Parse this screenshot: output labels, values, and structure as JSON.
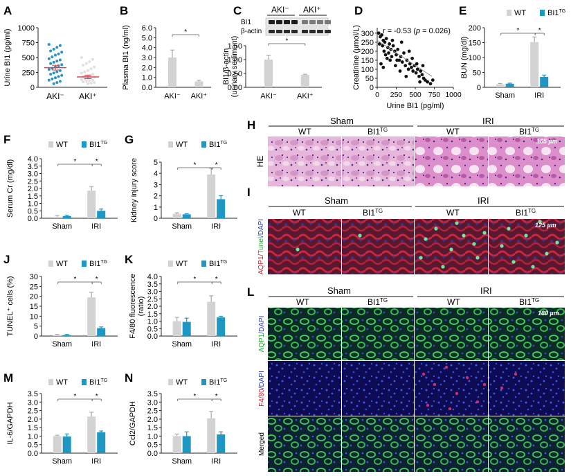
{
  "colors": {
    "wt": "#d3d3d3",
    "tg": "#2096c3",
    "red": "#d64550",
    "scatter_wt": "#2a93c4",
    "scatter_tg": "#e0e0e0",
    "he_bg": "#d9a3cc",
    "if_bg": "#521a2a",
    "if2_bg": "#0f3a28",
    "if3_bg": "#120d5c"
  },
  "legend": {
    "wt": "WT",
    "tg": "BI1",
    "tg_sup": "TG"
  },
  "sig": "*",
  "panels": {
    "A": {
      "letter": "A",
      "ylabel": "Urine BI1 (pg/ml)",
      "xlabels": [
        "AKI⁻",
        "AKI⁺"
      ]
    },
    "B": {
      "letter": "B",
      "ylabel": "Plasma BI1 (ng/ml)",
      "xlabels": [
        "AKI⁻",
        "AKI⁺"
      ]
    },
    "C": {
      "letter": "C",
      "ylabel": "BI1/β-actin",
      "ylabel2": "(urinary sediment)",
      "blot_labels": [
        "BI1",
        "β-actin"
      ],
      "groups": [
        "AKI⁻",
        "AKI⁺"
      ],
      "xlabels": [
        "AKI⁻",
        "AKI⁺"
      ]
    },
    "D": {
      "letter": "D",
      "ylabel": "Creatinine (µmol/L)",
      "xlabel": "Urine BI1 (pg/ml)",
      "r_text": "r = -0.53 (",
      "p_text": "p",
      "p_val": " = 0.026)"
    },
    "E": {
      "letter": "E",
      "ylabel": "BUN (mg/dl)",
      "xlabels": [
        "Sham",
        "IRI"
      ]
    },
    "F": {
      "letter": "F",
      "ylabel": "Serum Cr (mg/dl)",
      "xlabels": [
        "Sham",
        "IRI"
      ]
    },
    "G": {
      "letter": "G",
      "ylabel": "Kidney injury score",
      "xlabels": [
        "Sham",
        "IRI"
      ]
    },
    "J": {
      "letter": "J",
      "ylabel": "TUNEL⁺ cells (%)",
      "xlabels": [
        "Sham",
        "IRI"
      ]
    },
    "K": {
      "letter": "K",
      "ylabel": "F4/80 fluorescence",
      "ylabel2": "(ratio)",
      "xlabels": [
        "Sham",
        "IRI"
      ]
    },
    "M": {
      "letter": "M",
      "ylabel": "IL-6/GAPDH",
      "xlabels": [
        "Sham",
        "IRI"
      ]
    },
    "N": {
      "letter": "N",
      "ylabel": "Ccl2/GAPDH",
      "xlabels": [
        "Sham",
        "IRI"
      ]
    },
    "H": {
      "letter": "H",
      "groups": [
        "Sham",
        "IRI"
      ],
      "cols": [
        "WT",
        "BI1",
        "WT",
        "BI1"
      ],
      "row": "HE",
      "scale": "165 µm"
    },
    "I": {
      "letter": "I",
      "groups": [
        "Sham",
        "IRI"
      ],
      "cols": [
        "WT",
        "BI1",
        "WT",
        "BI1"
      ],
      "row_a": "AQP1/",
      "row_b": "Tunel",
      "row_c": "/DAPI",
      "scale": "125 µm"
    },
    "L": {
      "letter": "L",
      "groups": [
        "Sham",
        "IRI"
      ],
      "cols": [
        "WT",
        "BI1",
        "WT",
        "BI1"
      ],
      "rows_a": [
        "AQP1",
        "F4/80",
        "Merged"
      ],
      "rows_b": [
        "/DAPI",
        "/DAPI",
        ""
      ],
      "scale": "180 µm"
    }
  },
  "chart_data": [
    {
      "id": "A",
      "type": "scatter",
      "title": "",
      "ylabel": "Urine BI1 (pg/ml)",
      "categories": [
        "AKI-",
        "AKI+"
      ],
      "yticks": [
        0,
        250,
        500,
        750,
        1000
      ],
      "ylim": [
        0,
        1000
      ],
      "series": [
        {
          "name": "AKI-",
          "mean": 330,
          "sem": 40,
          "values": [
            720,
            700,
            670,
            640,
            610,
            590,
            560,
            540,
            510,
            480,
            460,
            440,
            420,
            400,
            380,
            360,
            340,
            320,
            300,
            280,
            260,
            240,
            220,
            200,
            180,
            160,
            140,
            120,
            100,
            80,
            60
          ]
        },
        {
          "name": "AKI+",
          "mean": 175,
          "sem": 30,
          "values": [
            500,
            470,
            430,
            400,
            370,
            340,
            310,
            280,
            260,
            240,
            220,
            200,
            190,
            180,
            170,
            160,
            150,
            140,
            130,
            120,
            110,
            100,
            90,
            80,
            70,
            60
          ]
        }
      ]
    },
    {
      "id": "B",
      "type": "bar",
      "ylabel": "Plasma BI1 (ng/ml)",
      "categories": [
        "AKI-",
        "AKI+"
      ],
      "values": [
        3.0,
        0.6
      ],
      "errors": [
        0.75,
        0.1
      ],
      "yticks": [
        0.0,
        1.0,
        2.0,
        3.0,
        4.0,
        5.0,
        6.0
      ],
      "ylim": [
        0,
        6
      ]
    },
    {
      "id": "C",
      "type": "bar",
      "ylabel": "BI1/beta-actin (urinary sediment)",
      "categories": [
        "AKI-",
        "AKI+"
      ],
      "values": [
        1.0,
        0.45
      ],
      "errors": [
        0.15,
        0.02
      ],
      "yticks": [
        0.0,
        0.5,
        1.0,
        1.5
      ],
      "ylim": [
        0,
        1.5
      ]
    },
    {
      "id": "D",
      "type": "scatter",
      "xlabel": "Urine BI1 (pg/ml)",
      "ylabel": "Creatinine (umol/L)",
      "xticks": [
        0,
        250,
        500,
        750,
        1000
      ],
      "yticks": [
        0,
        50,
        100,
        150,
        200,
        250,
        300
      ],
      "xlim": [
        0,
        1000
      ],
      "ylim": [
        0,
        330
      ],
      "r": -0.53,
      "p": 0.026,
      "points": [
        [
          20,
          300
        ],
        [
          40,
          280
        ],
        [
          60,
          290
        ],
        [
          80,
          260
        ],
        [
          30,
          240
        ],
        [
          70,
          230
        ],
        [
          100,
          250
        ],
        [
          120,
          270
        ],
        [
          140,
          220
        ],
        [
          160,
          240
        ],
        [
          180,
          210
        ],
        [
          200,
          260
        ],
        [
          90,
          200
        ],
        [
          110,
          180
        ],
        [
          130,
          160
        ],
        [
          150,
          190
        ],
        [
          170,
          150
        ],
        [
          190,
          170
        ],
        [
          210,
          230
        ],
        [
          230,
          200
        ],
        [
          250,
          180
        ],
        [
          270,
          210
        ],
        [
          290,
          150
        ],
        [
          310,
          170
        ],
        [
          330,
          140
        ],
        [
          350,
          190
        ],
        [
          370,
          120
        ],
        [
          390,
          150
        ],
        [
          410,
          100
        ],
        [
          430,
          130
        ],
        [
          450,
          110
        ],
        [
          470,
          90
        ],
        [
          490,
          120
        ],
        [
          510,
          80
        ],
        [
          530,
          100
        ],
        [
          550,
          60
        ],
        [
          570,
          90
        ],
        [
          590,
          70
        ],
        [
          610,
          50
        ],
        [
          630,
          40
        ],
        [
          660,
          30
        ],
        [
          700,
          20
        ],
        [
          730,
          40
        ],
        [
          50,
          130
        ],
        [
          80,
          110
        ],
        [
          240,
          120
        ],
        [
          300,
          90
        ],
        [
          380,
          60
        ],
        [
          420,
          200
        ],
        [
          460,
          160
        ],
        [
          520,
          130
        ],
        [
          560,
          30
        ],
        [
          600,
          120
        ],
        [
          320,
          250
        ],
        [
          260,
          150
        ]
      ],
      "fit": [
        [
          0,
          260
        ],
        [
          720,
          60
        ]
      ]
    },
    {
      "id": "E",
      "type": "bar",
      "ylabel": "BUN (mg/dl)",
      "categories": [
        "Sham",
        "IRI"
      ],
      "series": [
        {
          "name": "WT",
          "values": [
            10,
            152
          ],
          "errors": [
            3,
            17
          ]
        },
        {
          "name": "BI1TG",
          "values": [
            12,
            35
          ],
          "errors": [
            2,
            6
          ]
        }
      ],
      "yticks": [
        0,
        50,
        100,
        150,
        200
      ],
      "ylim": [
        0,
        200
      ]
    },
    {
      "id": "F",
      "type": "bar",
      "ylabel": "Serum Cr (mg/dl)",
      "categories": [
        "Sham",
        "IRI"
      ],
      "series": [
        {
          "name": "WT",
          "values": [
            0.1,
            1.85
          ],
          "errors": [
            0.08,
            0.28
          ]
        },
        {
          "name": "BI1TG",
          "values": [
            0.15,
            0.5
          ],
          "errors": [
            0.06,
            0.12
          ]
        }
      ],
      "yticks": [
        0.0,
        0.5,
        1.0,
        1.5,
        2.0,
        2.5,
        3.0,
        3.5,
        4.0
      ],
      "ylim": [
        0,
        4
      ]
    },
    {
      "id": "G",
      "type": "bar",
      "ylabel": "Kidney injury score",
      "categories": [
        "Sham",
        "IRI"
      ],
      "series": [
        {
          "name": "WT",
          "values": [
            0.4,
            3.9
          ],
          "errors": [
            0.08,
            0.55
          ]
        },
        {
          "name": "BI1TG",
          "values": [
            0.35,
            1.7
          ],
          "errors": [
            0.06,
            0.3
          ]
        }
      ],
      "yticks": [
        0,
        1,
        2,
        3,
        4,
        5
      ],
      "ylim": [
        0,
        5
      ]
    },
    {
      "id": "J",
      "type": "bar",
      "ylabel": "TUNEL+ cells (%)",
      "categories": [
        "Sham",
        "IRI"
      ],
      "series": [
        {
          "name": "WT",
          "values": [
            0.5,
            19.5
          ],
          "errors": [
            0.3,
            2.5
          ]
        },
        {
          "name": "BI1TG",
          "values": [
            0.5,
            4.0
          ],
          "errors": [
            0.3,
            0.6
          ]
        }
      ],
      "yticks": [
        0,
        5,
        10,
        15,
        20,
        25,
        30
      ],
      "ylim": [
        0,
        30
      ]
    },
    {
      "id": "K",
      "type": "bar",
      "ylabel": "F4/80 fluorescence (ratio)",
      "categories": [
        "Sham",
        "IRI"
      ],
      "series": [
        {
          "name": "WT",
          "values": [
            1.0,
            2.3
          ],
          "errors": [
            0.25,
            0.4
          ]
        },
        {
          "name": "BI1TG",
          "values": [
            0.95,
            1.25
          ],
          "errors": [
            0.25,
            0.08
          ]
        }
      ],
      "yticks": [
        0.0,
        0.5,
        1.0,
        1.5,
        2.0,
        2.5,
        3.0,
        3.5,
        4.0
      ],
      "ylim": [
        0,
        4
      ]
    },
    {
      "id": "M",
      "type": "bar",
      "ylabel": "IL-6/GAPDH",
      "categories": [
        "Sham",
        "IRI"
      ],
      "series": [
        {
          "name": "WT",
          "values": [
            1.0,
            2.15
          ],
          "errors": [
            0.05,
            0.25
          ]
        },
        {
          "name": "BI1TG",
          "values": [
            0.98,
            1.22
          ],
          "errors": [
            0.15,
            0.08
          ]
        }
      ],
      "yticks": [
        0.0,
        0.5,
        1.0,
        1.5,
        2.0,
        2.5,
        3.0,
        3.5
      ],
      "ylim": [
        0,
        3.5
      ]
    },
    {
      "id": "N",
      "type": "bar",
      "ylabel": "Ccl2/GAPDH",
      "categories": [
        "Sham",
        "IRI"
      ],
      "series": [
        {
          "name": "WT",
          "values": [
            1.0,
            2.05
          ],
          "errors": [
            0.12,
            0.4
          ]
        },
        {
          "name": "BI1TG",
          "values": [
            1.0,
            1.1
          ],
          "errors": [
            0.25,
            0.15
          ]
        }
      ],
      "yticks": [
        0.0,
        0.5,
        1.0,
        1.5,
        2.0,
        2.5,
        3.0,
        3.5
      ],
      "ylim": [
        0,
        3.5
      ]
    }
  ]
}
